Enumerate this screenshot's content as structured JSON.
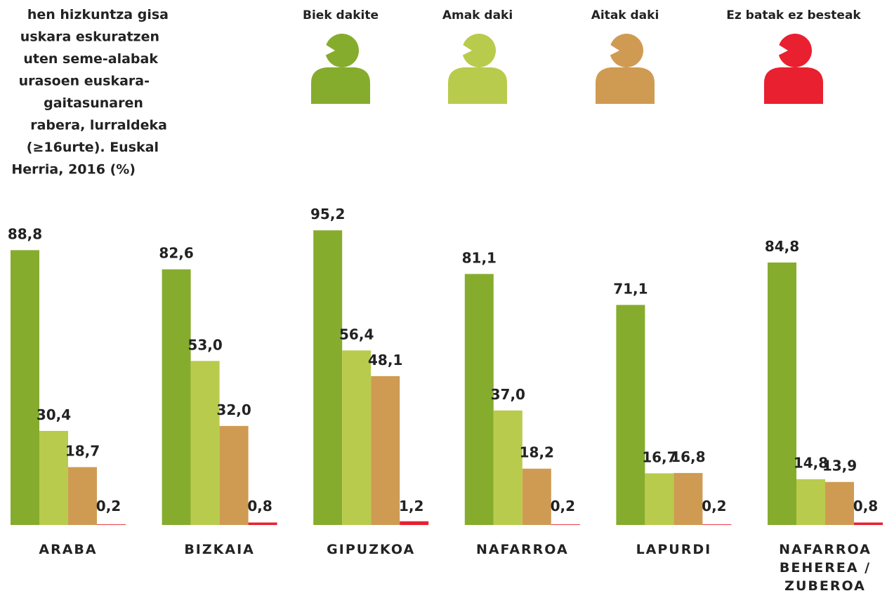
{
  "chart_data": {
    "type": "bar",
    "title": [
      "hen hizkuntza gisa",
      "uskara eskuratzen",
      "uten seme-alabak",
      "urasoen euskara-",
      "gaitasunaren",
      "rabera, lurraldeka",
      "(≥16urte). Euskal",
      "Herria, 2016 (%)"
    ],
    "categories": [
      "ARABA",
      "BIZKAIA",
      "GIPUZKOA",
      "NAFARROA",
      "LAPURDI",
      "NAFARROA BEHEREA / ZUBEROA"
    ],
    "series": [
      {
        "name": "Biek dakite",
        "color": "#86ac2e",
        "values": [
          88.8,
          82.6,
          95.2,
          81.1,
          71.1,
          84.8
        ],
        "value_labels": [
          "88,8",
          "82,6",
          "95,2",
          "81,1",
          "71,1",
          "84,8"
        ]
      },
      {
        "name": "Amak daki",
        "color": "#b9cb4d",
        "values": [
          30.4,
          53.0,
          56.4,
          37.0,
          16.7,
          14.8
        ],
        "value_labels": [
          "30,4",
          "53,0",
          "56,4",
          "37,0",
          "16,7",
          "14,8"
        ]
      },
      {
        "name": "Aitak daki",
        "color": "#cf9b52",
        "values": [
          18.7,
          32.0,
          48.1,
          18.2,
          16.8,
          13.9
        ],
        "value_labels": [
          "18,7",
          "32,0",
          "48,1",
          "18,2",
          "16,8",
          "13,9"
        ]
      },
      {
        "name": "Ez batak ez besteak",
        "color": "#e8202f",
        "values": [
          0.2,
          0.8,
          1.2,
          0.2,
          0.2,
          0.8
        ],
        "value_labels": [
          "0,2",
          "0,8",
          "1,2",
          "0,2",
          "0,2",
          "0,8"
        ]
      }
    ]
  }
}
